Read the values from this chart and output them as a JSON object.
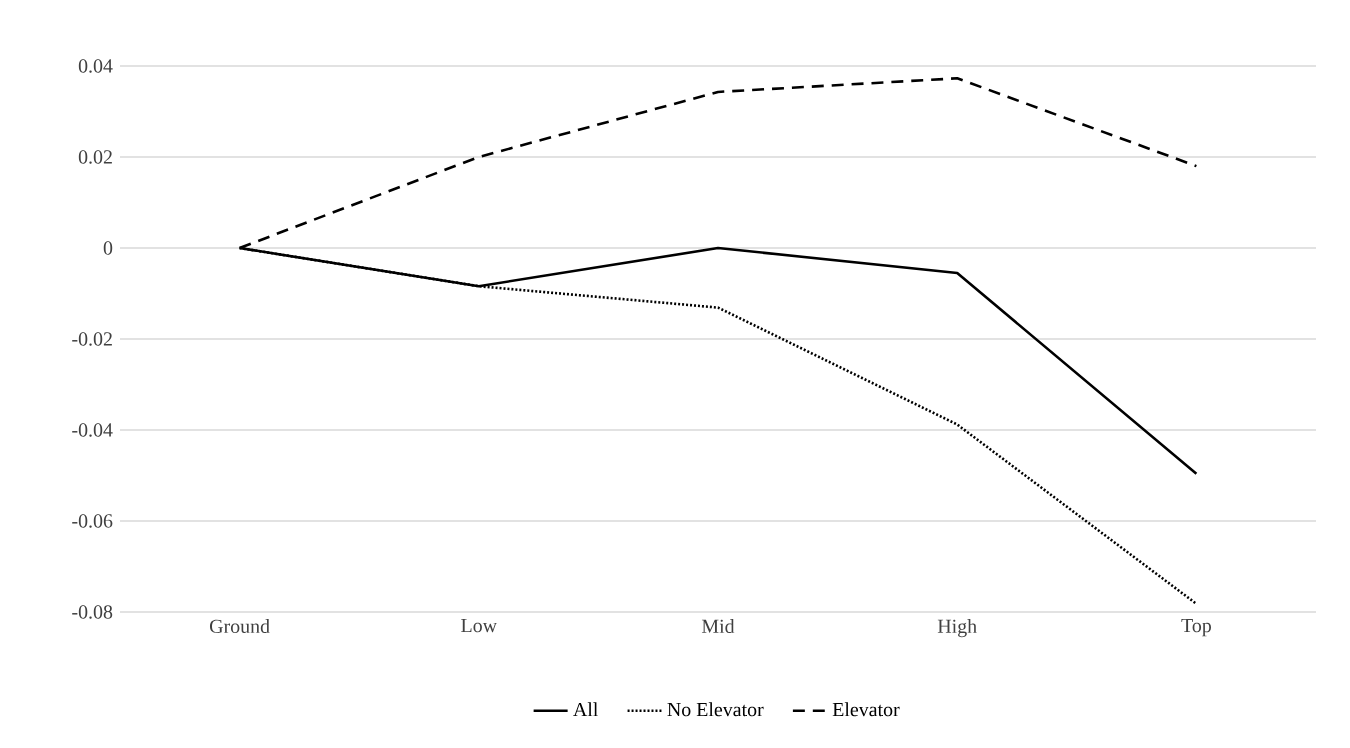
{
  "chart_data": {
    "type": "line",
    "categories": [
      "Ground",
      "Low",
      "Mid",
      "High",
      "Top"
    ],
    "series": [
      {
        "name": "All",
        "color": "#000000",
        "line_style": "solid",
        "values": [
          0,
          -0.0084,
          0,
          -0.0055,
          -0.0496
        ]
      },
      {
        "name": "No Elevator",
        "color": "#000000",
        "line_style": "dotted",
        "values": [
          0,
          -0.0084,
          -0.0131,
          -0.0388,
          -0.0782
        ]
      },
      {
        "name": "Elevator",
        "color": "#000000",
        "line_style": "dashed",
        "values": [
          0,
          0.02,
          0.0343,
          0.0373,
          0.018
        ]
      }
    ],
    "ylim": [
      -0.08,
      0.04
    ],
    "yticks": [
      -0.08,
      -0.06,
      -0.04,
      -0.02,
      0,
      0.02,
      0.04
    ],
    "grid": "y",
    "legend": "bottom",
    "marker": "none"
  }
}
